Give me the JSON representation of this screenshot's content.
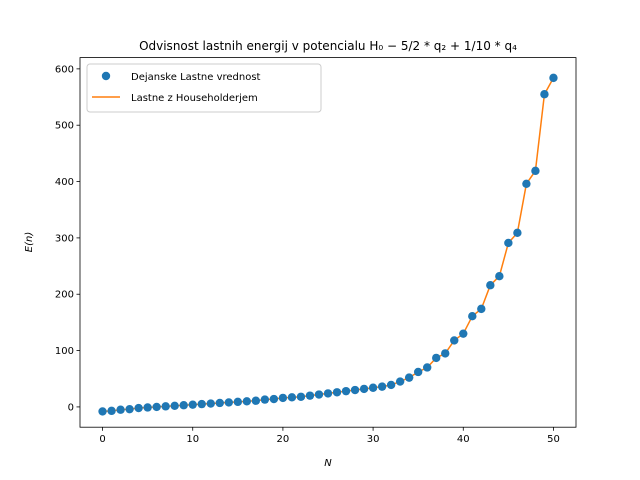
{
  "chart_data": {
    "type": "scatter",
    "title": "Odvisnost lastnih energij v potencialu H₀ − 5/2 * q₂ + 1/10 * q₄",
    "xlabel": "N",
    "ylabel": "E(n)",
    "xlim": [
      -2.5,
      52.5
    ],
    "ylim": [
      -36,
      620
    ],
    "xticks": [
      0,
      10,
      20,
      30,
      40,
      50
    ],
    "yticks": [
      0,
      100,
      200,
      300,
      400,
      500,
      600
    ],
    "grid": false,
    "legend_position": "top-left",
    "x": [
      0,
      1,
      2,
      3,
      4,
      5,
      6,
      7,
      8,
      9,
      10,
      11,
      12,
      13,
      14,
      15,
      16,
      17,
      18,
      19,
      20,
      21,
      22,
      23,
      24,
      25,
      26,
      27,
      28,
      29,
      30,
      31,
      32,
      33,
      34,
      35,
      36,
      37,
      38,
      39,
      40,
      41,
      42,
      43,
      44,
      45,
      46,
      47,
      48,
      49,
      50
    ],
    "series": [
      {
        "name": "Dejanske Lastne vrednost",
        "kind": "scatter",
        "color": "#1f77b4",
        "values": [
          -8,
          -7,
          -5,
          -4,
          -2,
          -1,
          0,
          1,
          2,
          3,
          4,
          5,
          6,
          7,
          8,
          9,
          10,
          11,
          13,
          14,
          16,
          17,
          18,
          20,
          22,
          24,
          26,
          28,
          30,
          32,
          34,
          36,
          39,
          45,
          52,
          62,
          70,
          87,
          95,
          118,
          130,
          161,
          174,
          216,
          232,
          291,
          309,
          396,
          419,
          555,
          584
        ]
      },
      {
        "name": "Lastne z Householderjem",
        "kind": "line",
        "color": "#ff7f0e",
        "values": [
          -8,
          -7,
          -5,
          -4,
          -2,
          -1,
          0,
          1,
          2,
          3,
          4,
          5,
          6,
          7,
          8,
          9,
          10,
          11,
          13,
          14,
          16,
          17,
          18,
          20,
          22,
          24,
          26,
          28,
          30,
          32,
          34,
          36,
          39,
          45,
          52,
          62,
          70,
          87,
          95,
          118,
          130,
          161,
          174,
          216,
          232,
          291,
          309,
          396,
          419,
          555,
          584
        ]
      }
    ]
  }
}
